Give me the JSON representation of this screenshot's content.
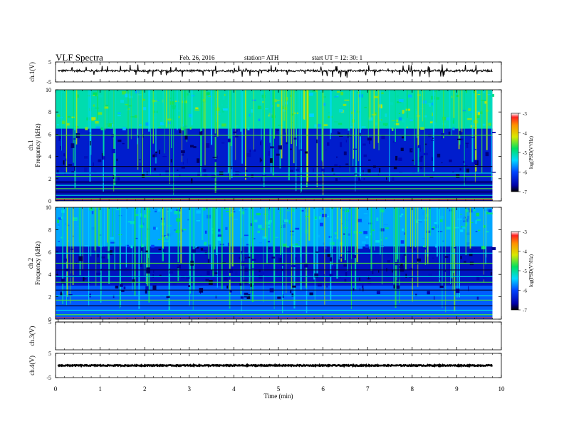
{
  "header": {
    "title": "VLF  Spectra",
    "date": "Feb. 26, 2016",
    "station": "station= ATH",
    "start": "start  UT =    12: 30: 1"
  },
  "chart_data": [
    {
      "type": "line",
      "panel": "ch1-waveform",
      "ylabel": "ch.1(V)",
      "ylim": [
        -5,
        5
      ],
      "yticks": [
        "5",
        "-5"
      ],
      "description_values": {
        "baseline_V": 0.6,
        "noise_amplitude_V": 0.5
      }
    },
    {
      "type": "heatmap",
      "panel": "ch1-spectrogram",
      "ylabel": "ch.1\nFrequency (kHz)",
      "ylabel_lines": [
        "ch.1",
        "Frequency (kHz)"
      ],
      "ylim": [
        0,
        10
      ],
      "yticks": [
        "0",
        "2",
        "4",
        "6",
        "8",
        "10"
      ],
      "colorbar": {
        "label": "log(PSD(V²/Hz)",
        "range": [
          -7,
          -3
        ],
        "ticks": [
          "-3",
          "-4",
          "-5",
          "-6",
          "-7"
        ]
      },
      "hf_band_kHz": [
        6.5,
        10
      ],
      "hf_level": -5.1,
      "mid_level": -6.4,
      "low_band_kHz": [
        0,
        1.8
      ],
      "low_level": -6.6,
      "lines_kHz": [
        0.2,
        0.5,
        0.8,
        1.1,
        1.4,
        1.7,
        2.2,
        2.5,
        3.1,
        5.9
      ]
    },
    {
      "type": "heatmap",
      "panel": "ch2-spectrogram",
      "ylabel": "ch.2\nFrequency (kHz)",
      "ylabel_lines": [
        "ch.2",
        "Frequency (kHz)"
      ],
      "ylim": [
        0,
        10
      ],
      "yticks": [
        "0",
        "2",
        "4",
        "6",
        "8",
        "10"
      ],
      "colorbar": {
        "label": "log(PSD(V²/Hz)",
        "range": [
          -7,
          -3
        ],
        "ticks": [
          "-3",
          "-4",
          "-5",
          "-6",
          "-7"
        ]
      },
      "hf_band_kHz": [
        6.5,
        10
      ],
      "hf_level": -5.6,
      "mid_level": -6.5,
      "low_band_kHz": [
        0,
        3.0
      ],
      "low_level": -5.9,
      "lines_kHz": [
        0.4,
        0.8,
        1.2,
        1.7,
        2.1,
        2.6,
        3.3,
        3.8,
        4.4,
        5.0,
        5.9
      ]
    },
    {
      "type": "line",
      "panel": "ch3-waveform",
      "ylabel": "ch.3(V)",
      "ylim": [
        -5,
        5
      ],
      "yticks": [
        "5"
      ],
      "description_values": {
        "baseline_V": 5,
        "noise_amplitude_V": 0
      }
    },
    {
      "type": "line",
      "panel": "ch4-waveform",
      "ylabel": "ch.4(V)",
      "ylim": [
        -5,
        5
      ],
      "yticks": [
        "5",
        "-5"
      ],
      "description_values": {
        "baseline_V": 0,
        "noise_amplitude_V": 0.2
      }
    }
  ],
  "x_axis": {
    "label": "Time  (min)",
    "range": [
      0,
      10
    ],
    "ticks": [
      "0",
      "1",
      "2",
      "3",
      "4",
      "5",
      "6",
      "7",
      "8",
      "9",
      "10"
    ],
    "data_end_min": 9.8
  }
}
